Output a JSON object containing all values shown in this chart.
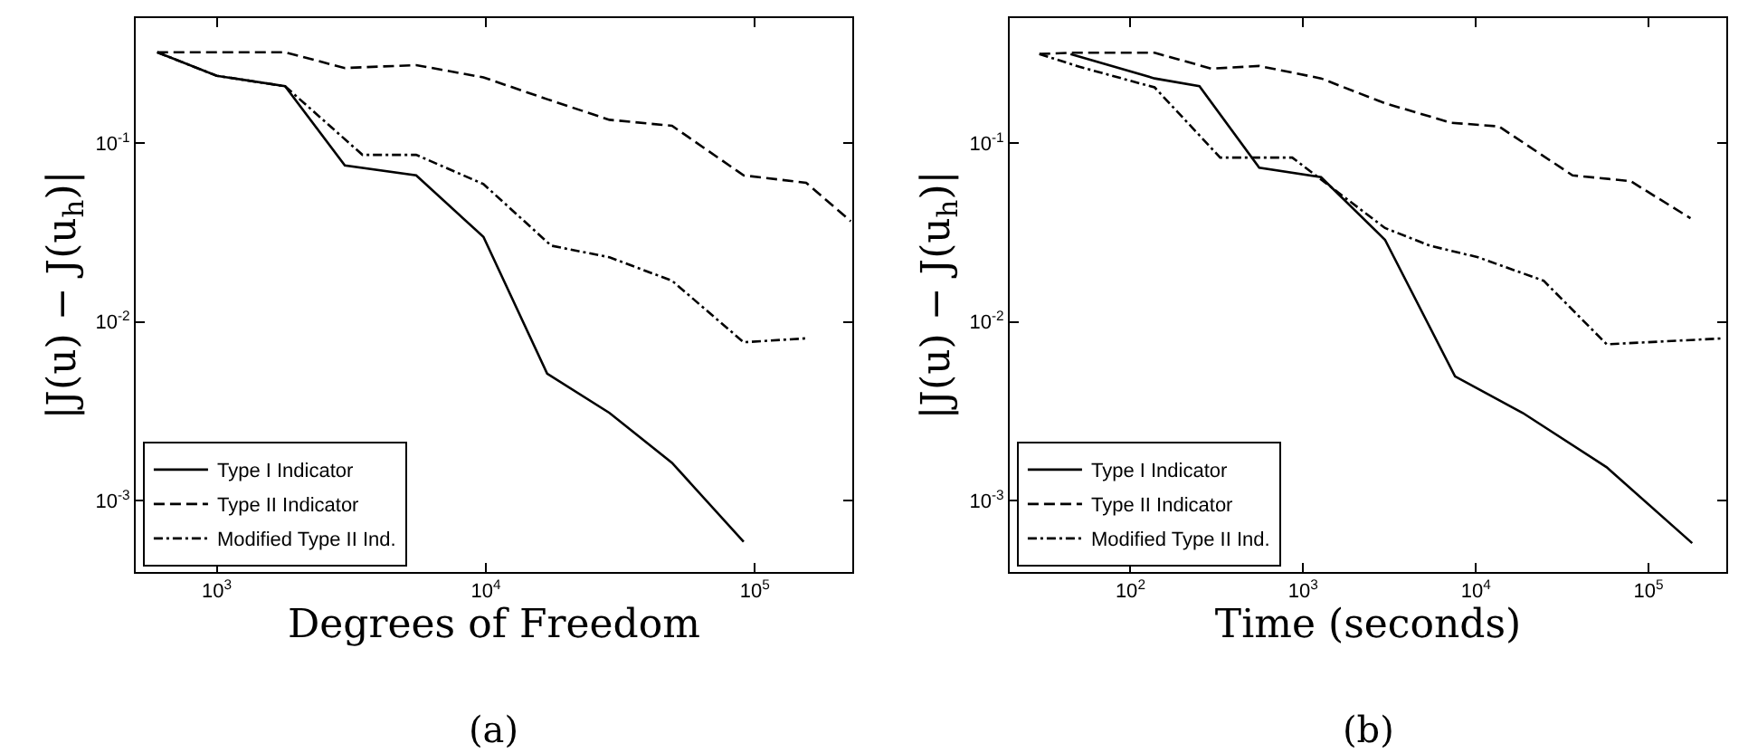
{
  "chart_data": [
    {
      "type": "line",
      "xlabel": "Degrees of Freedom",
      "ylabel": "|J(u) − J(u$_{h}$)|",
      "annotations": [
        "(a)"
      ],
      "log": "xy",
      "grid": false,
      "legend": "bottom left",
      "marker": "none",
      "xlim": [
        500,
        230000
      ],
      "ylim": [
        0.0004,
        0.5
      ],
      "xticks": [
        {
          "value": 1000,
          "label": "10$^{3}$"
        },
        {
          "value": 10000,
          "label": "10$^{4}$"
        },
        {
          "value": 100000,
          "label": "10$^{5}$"
        }
      ],
      "yticks": [
        {
          "value": 0.001,
          "label": "10$^{-3}$"
        },
        {
          "value": 0.01,
          "label": "10$^{-2}$"
        },
        {
          "value": 0.1,
          "label": "10$^{-1}$"
        }
      ],
      "series": [
        {
          "name": "Type I Indicator",
          "color": "#000000",
          "line_style": "solid",
          "x": [
            601,
            1000,
            1795,
            2993,
            5510,
            9800,
            16900,
            28800,
            49200,
            90800
          ],
          "values": [
            0.322,
            0.238,
            0.208,
            0.075,
            0.066,
            0.0299,
            0.00514,
            0.0031,
            0.00163,
            0.00059
          ]
        },
        {
          "name": "Type II Indicator",
          "color": "#000000",
          "line_style": "dashed",
          "x": [
            601,
            1000,
            1795,
            2993,
            5510,
            9800,
            16900,
            28800,
            49200,
            90800,
            155000,
            227000
          ],
          "values": [
            0.322,
            0.322,
            0.322,
            0.263,
            0.273,
            0.233,
            0.176,
            0.135,
            0.125,
            0.066,
            0.06,
            0.0366
          ]
        },
        {
          "name": "Modified Type II Ind.",
          "color": "#000000",
          "line_style": "dashdot",
          "x": [
            601,
            1000,
            1795,
            3480,
            5510,
            9800,
            17500,
            28800,
            49200,
            90800,
            155000
          ],
          "values": [
            0.322,
            0.238,
            0.208,
            0.086,
            0.086,
            0.059,
            0.0267,
            0.023,
            0.017,
            0.0077,
            0.0081
          ]
        }
      ]
    },
    {
      "type": "line",
      "xlabel": "Time (seconds)",
      "ylabel": "|J(u) − J(u$_{h}$)|",
      "annotations": [
        "(b)"
      ],
      "log": "xy",
      "grid": false,
      "legend": "bottom left",
      "marker": "none",
      "xlim": [
        20,
        282000
      ],
      "ylim": [
        0.0004,
        0.5
      ],
      "xticks": [
        {
          "value": 100,
          "label": "10$^{2}$"
        },
        {
          "value": 1000,
          "label": "10$^{3}$"
        },
        {
          "value": 10000,
          "label": "10$^{4}$"
        },
        {
          "value": 100000,
          "label": "10$^{5}$"
        }
      ],
      "yticks": [
        {
          "value": 0.001,
          "label": "10$^{-3}$"
        },
        {
          "value": 0.01,
          "label": "10$^{-2}$"
        },
        {
          "value": 0.1,
          "label": "10$^{-1}$"
        }
      ],
      "series": [
        {
          "name": "Type I Indicator",
          "color": "#000000",
          "line_style": "solid",
          "x": [
            45,
            138,
            251,
            557,
            1270,
            2980,
            7580,
            18700,
            57300,
            179000
          ],
          "values": [
            0.315,
            0.23,
            0.208,
            0.0728,
            0.0645,
            0.0288,
            0.00496,
            0.0031,
            0.00154,
            0.00058
          ]
        },
        {
          "name": "Type II Indicator",
          "color": "#000000",
          "line_style": "dashed",
          "x": [
            29.7,
            45,
            138,
            294,
            557,
            1270,
            2980,
            7180,
            13600,
            36300,
            78700,
            175000
          ],
          "values": [
            0.315,
            0.32,
            0.32,
            0.261,
            0.27,
            0.23,
            0.167,
            0.13,
            0.124,
            0.066,
            0.0613,
            0.038
          ]
        },
        {
          "name": "Modified Type II Ind.",
          "color": "#000000",
          "line_style": "dashdot",
          "x": [
            29.7,
            50.7,
            138,
            331,
            865,
            2980,
            5420,
            10300,
            24700,
            57300,
            272000
          ],
          "values": [
            0.315,
            0.267,
            0.205,
            0.083,
            0.083,
            0.0335,
            0.0267,
            0.023,
            0.017,
            0.0075,
            0.0081
          ]
        }
      ]
    }
  ]
}
